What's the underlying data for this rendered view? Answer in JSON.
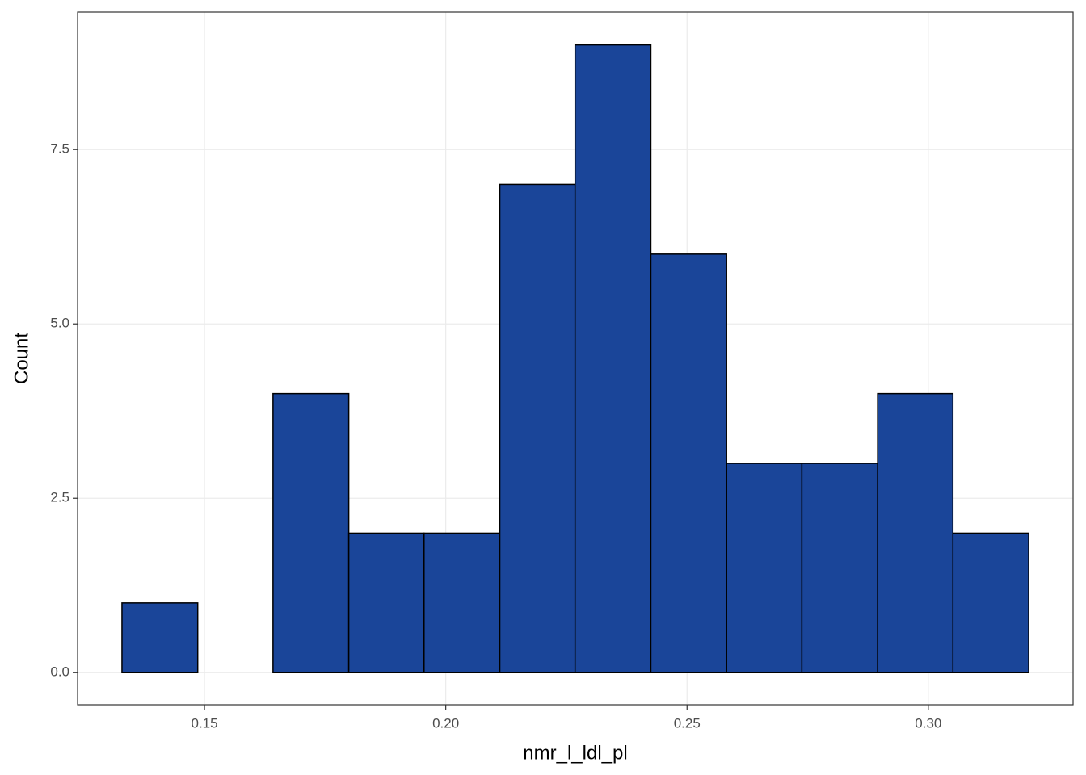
{
  "chart_data": {
    "type": "histogram",
    "x_label": "nmr_l_ldl_pl",
    "y_label": "Count",
    "bins": [
      0.1329,
      0.1486,
      0.1642,
      0.1799,
      0.1955,
      0.2112,
      0.2268,
      0.2425,
      0.2582,
      0.2738,
      0.2895,
      0.3051,
      0.3208
    ],
    "values": [
      1,
      0,
      4,
      2,
      2,
      7,
      9,
      6,
      3,
      3,
      4,
      2
    ],
    "color": "#1a4599",
    "xlim": [
      0.1237,
      0.33
    ],
    "ylim": [
      -0.46,
      9.47
    ],
    "xticks": [
      0.15,
      {
        "value": 0.2,
        "label": "0.20"
      },
      0.25,
      {
        "value": 0.3,
        "label": "0.30"
      }
    ],
    "yticks": [
      {
        "value": 0,
        "label": "0.0"
      },
      2.5,
      {
        "value": 5,
        "label": "5.0"
      },
      7.5
    ],
    "grid": true
  }
}
